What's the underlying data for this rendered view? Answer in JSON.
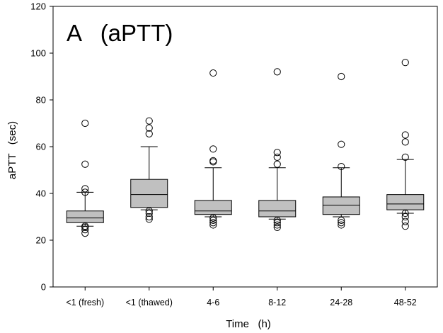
{
  "chart_data": {
    "type": "box",
    "title": "A   (aPTT)",
    "xlabel": "Time   (h)",
    "ylabel": "aPTT   (sec)",
    "ylim": [
      0,
      120
    ],
    "yticks": [
      0,
      20,
      40,
      60,
      80,
      100,
      120
    ],
    "grid": false,
    "legend": "none",
    "box_fill": "#c0c0c0",
    "categories": [
      "<1 (fresh)",
      "<1 (thawed)",
      "4-6",
      "8-12",
      "24-28",
      "48-52"
    ],
    "boxes": [
      {
        "category": "<1 (fresh)",
        "whisker_low": 26,
        "q1": 27.5,
        "median": 29.5,
        "q3": 32.5,
        "whisker_high": 40.5,
        "outliers": [
          23,
          24.5,
          25.5,
          26,
          40.5,
          42,
          52.5,
          70
        ]
      },
      {
        "category": "<1 (thawed)",
        "whisker_low": 33,
        "q1": 34,
        "median": 39.5,
        "q3": 46,
        "whisker_high": 60,
        "outliers": [
          29,
          30,
          31.5,
          32.5,
          65.5,
          68,
          71
        ]
      },
      {
        "category": "4-6",
        "whisker_low": 30,
        "q1": 31,
        "median": 32.5,
        "q3": 37,
        "whisker_high": 51,
        "outliers": [
          26.5,
          27.5,
          28.5,
          29.5,
          53.5,
          54,
          59,
          91.5
        ]
      },
      {
        "category": "8-12",
        "whisker_low": 29,
        "q1": 30,
        "median": 32.5,
        "q3": 37,
        "whisker_high": 51,
        "outliers": [
          25.5,
          26.5,
          27.5,
          28.5,
          52.5,
          55.5,
          57.5,
          92
        ]
      },
      {
        "category": "24-28",
        "whisker_low": 30,
        "q1": 31,
        "median": 35,
        "q3": 38.5,
        "whisker_high": 51,
        "outliers": [
          26.5,
          27.5,
          28.5,
          51.5,
          61,
          90
        ]
      },
      {
        "category": "48-52",
        "whisker_low": 31.5,
        "q1": 33,
        "median": 35.5,
        "q3": 39.5,
        "whisker_high": 54.5,
        "outliers": [
          26,
          28,
          30,
          31.5,
          55.5,
          62,
          65,
          96
        ]
      }
    ]
  }
}
